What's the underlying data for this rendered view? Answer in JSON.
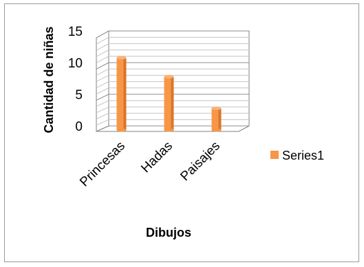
{
  "chart_data": {
    "type": "bar",
    "categories": [
      "Princesas",
      "Hadas",
      "Paisajes"
    ],
    "series": [
      {
        "name": "Series1",
        "values": [
          11,
          8,
          3
        ],
        "color": "#F79646"
      }
    ],
    "xlabel": "Dibujos",
    "ylabel": "Cantidad de niñas",
    "ylim": [
      0,
      15
    ],
    "yticks": [
      0,
      5,
      10,
      15
    ],
    "grid": true,
    "style": "3d-column",
    "legend_position": "right"
  }
}
